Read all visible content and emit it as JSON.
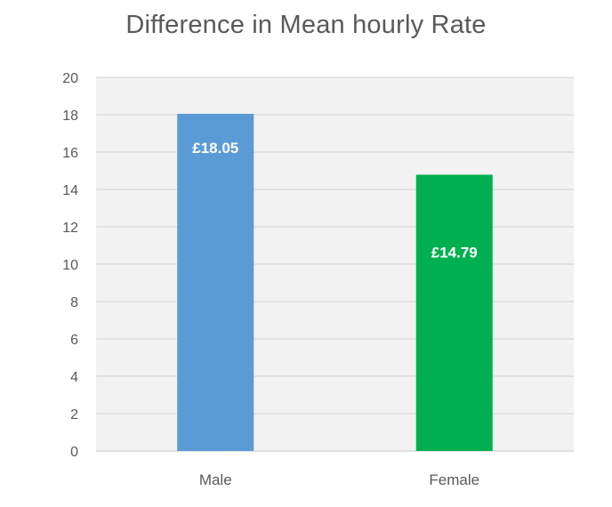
{
  "chart_data": {
    "type": "bar",
    "title": "Difference in Mean hourly Rate",
    "categories": [
      "Male",
      "Female"
    ],
    "values": [
      18.05,
      14.79
    ],
    "data_labels": [
      "£18.05",
      "£14.79"
    ],
    "bar_colors": [
      "#5B9BD5",
      "#00B050"
    ],
    "ylim": [
      0,
      20
    ],
    "yticks": [
      0,
      2,
      4,
      6,
      8,
      10,
      12,
      14,
      16,
      18,
      20
    ],
    "xlabel": "",
    "ylabel": "",
    "grid": true,
    "legend": "none",
    "plot_background": "#F2F2F2",
    "gridline_color": "#D9D9D9",
    "text_color": "#595959"
  }
}
